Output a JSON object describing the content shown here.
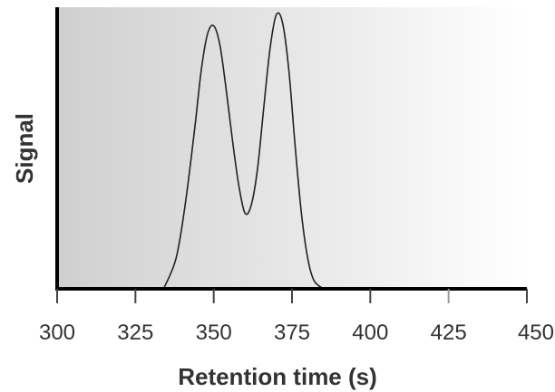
{
  "chart_data": {
    "type": "line",
    "title": "",
    "xlabel": "Retention time (s)",
    "ylabel": "Signal",
    "xlim": [
      300,
      450
    ],
    "ylim": [
      0,
      1
    ],
    "x_ticks": [
      300,
      325,
      350,
      375,
      400,
      425,
      450
    ],
    "x_tick_labels": [
      "300",
      "325",
      "350",
      "375",
      "400",
      "425",
      "450"
    ],
    "y_ticks_shown": false,
    "grid": false,
    "background": "gradient grey to white",
    "series": [
      {
        "x": [
          334,
          338,
          341,
          344,
          346,
          348,
          350,
          352,
          354,
          356,
          358,
          360,
          362,
          364,
          366,
          368,
          370,
          372,
          374,
          376,
          378,
          380,
          382,
          385
        ],
        "y": [
          0.0,
          0.11,
          0.31,
          0.58,
          0.78,
          0.91,
          0.94,
          0.87,
          0.71,
          0.53,
          0.37,
          0.27,
          0.3,
          0.43,
          0.65,
          0.86,
          0.98,
          0.95,
          0.78,
          0.51,
          0.27,
          0.11,
          0.03,
          0.0
        ],
        "color": "#222222"
      }
    ]
  },
  "colors": {
    "plot_gradient_start": "#cfcfcf",
    "plot_gradient_end": "#ffffff",
    "axis": "#000000"
  }
}
